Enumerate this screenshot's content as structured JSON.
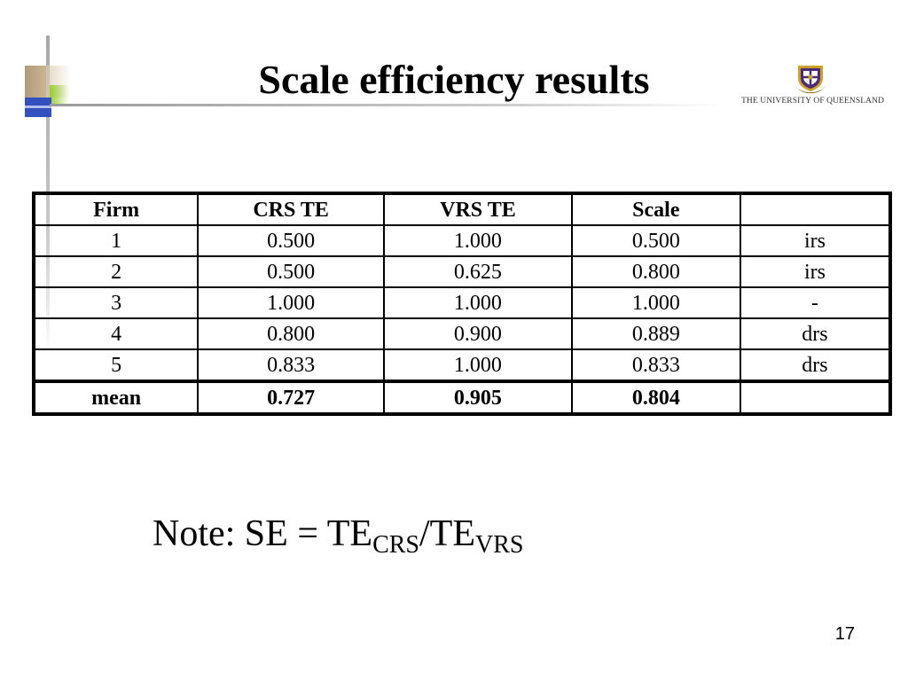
{
  "slide": {
    "title": "Scale efficiency results",
    "page_number": "17"
  },
  "logo": {
    "text": "The University Of Queensland",
    "text_display": "THE UNIVERSITY OF QUEENSLAND"
  },
  "table": {
    "headers": [
      "Firm",
      "CRS TE",
      "VRS TE",
      "Scale",
      ""
    ],
    "rows": [
      [
        "1",
        "0.500",
        "1.000",
        "0.500",
        "irs"
      ],
      [
        "2",
        "0.500",
        "0.625",
        "0.800",
        "irs"
      ],
      [
        "3",
        "1.000",
        "1.000",
        "1.000",
        "-"
      ],
      [
        "4",
        "0.800",
        "0.900",
        "0.889",
        "drs"
      ],
      [
        "5",
        "0.833",
        "1.000",
        "0.833",
        "drs"
      ]
    ],
    "mean_row": [
      "mean",
      "0.727",
      "0.905",
      "0.804",
      ""
    ]
  },
  "note": {
    "prefix": "Note:  SE = TE",
    "sub1": "CRS",
    "middle": "/TE",
    "sub2": "VRS"
  },
  "colors": {
    "accent_blue": "#3350c0",
    "accent_green": "#9acd32",
    "accent_brown": "#b29a78",
    "crest_purple": "#4b2a7b",
    "crest_gold": "#c9a227"
  }
}
